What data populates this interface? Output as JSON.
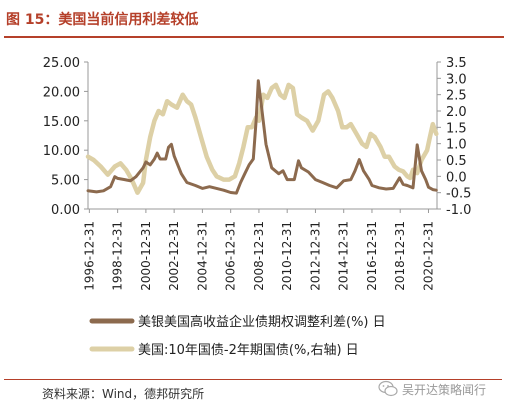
{
  "header": {
    "title": "图 15：美国当前信用利差较低"
  },
  "footer": {
    "source": "资料来源：Wind，德邦研究所",
    "watermark": "吴开达策略闻行"
  },
  "colors": {
    "accent": "#b5402a",
    "series_high_yield": "#8c6a4e",
    "series_term_spread": "#ddd0a6",
    "axis": "#999999"
  },
  "chart_data": {
    "type": "line",
    "title": "",
    "xlabel": "",
    "ylabel": "",
    "x_tick_labels": [
      "1996-12-31",
      "1998-12-31",
      "2000-12-31",
      "2002-12-31",
      "2004-12-31",
      "2006-12-31",
      "2008-12-31",
      "2010-12-31",
      "2012-12-31",
      "2014-12-31",
      "2016-12-31",
      "2018-12-31",
      "2020-12-31"
    ],
    "y_left_ticks": [
      "25.00",
      "20.00",
      "15.00",
      "10.00",
      "5.00",
      "0.00"
    ],
    "y_right_ticks": [
      "3.5",
      "3.0",
      "2.5",
      "2.0",
      "1.5",
      "1.0",
      "0.5",
      "0.0",
      "-0.5",
      "-1.0"
    ],
    "xlim": [
      1996.9,
      2021.6
    ],
    "ylim_left": [
      0,
      25
    ],
    "ylim_right": [
      -1.0,
      3.5
    ],
    "grid": false,
    "legend_position": "bottom",
    "series": [
      {
        "name": "美银美国高收益企业债期权调整利差(%) 日",
        "axis": "left",
        "points": [
          [
            1996.9,
            3.1
          ],
          [
            1997.5,
            2.9
          ],
          [
            1998.0,
            3.1
          ],
          [
            1998.5,
            3.8
          ],
          [
            1998.8,
            5.5
          ],
          [
            1999.0,
            5.2
          ],
          [
            1999.5,
            5.0
          ],
          [
            1999.9,
            4.8
          ],
          [
            2000.3,
            5.5
          ],
          [
            2000.8,
            7.0
          ],
          [
            2001.0,
            8.0
          ],
          [
            2001.3,
            7.5
          ],
          [
            2001.6,
            8.5
          ],
          [
            2001.8,
            9.5
          ],
          [
            2002.0,
            8.5
          ],
          [
            2002.4,
            8.5
          ],
          [
            2002.6,
            10.5
          ],
          [
            2002.8,
            11.0
          ],
          [
            2003.0,
            9.0
          ],
          [
            2003.5,
            6.0
          ],
          [
            2003.9,
            4.5
          ],
          [
            2004.5,
            4.0
          ],
          [
            2005.0,
            3.5
          ],
          [
            2005.5,
            3.8
          ],
          [
            2006.0,
            3.5
          ],
          [
            2006.5,
            3.2
          ],
          [
            2007.0,
            2.8
          ],
          [
            2007.4,
            2.7
          ],
          [
            2007.7,
            4.5
          ],
          [
            2008.0,
            6.0
          ],
          [
            2008.3,
            7.5
          ],
          [
            2008.6,
            8.5
          ],
          [
            2008.8,
            15.0
          ],
          [
            2008.95,
            21.8
          ],
          [
            2009.2,
            17.0
          ],
          [
            2009.5,
            11.0
          ],
          [
            2009.9,
            7.0
          ],
          [
            2010.4,
            6.0
          ],
          [
            2010.7,
            6.5
          ],
          [
            2011.0,
            5.0
          ],
          [
            2011.5,
            5.0
          ],
          [
            2011.8,
            8.2
          ],
          [
            2012.0,
            7.0
          ],
          [
            2012.5,
            6.3
          ],
          [
            2013.0,
            5.0
          ],
          [
            2013.5,
            4.5
          ],
          [
            2014.0,
            4.0
          ],
          [
            2014.5,
            3.6
          ],
          [
            2015.0,
            4.8
          ],
          [
            2015.5,
            5.0
          ],
          [
            2015.8,
            6.5
          ],
          [
            2016.1,
            8.4
          ],
          [
            2016.4,
            6.5
          ],
          [
            2016.8,
            5.0
          ],
          [
            2017.0,
            4.0
          ],
          [
            2017.5,
            3.6
          ],
          [
            2018.0,
            3.4
          ],
          [
            2018.5,
            3.5
          ],
          [
            2018.95,
            5.3
          ],
          [
            2019.2,
            4.2
          ],
          [
            2019.5,
            4.0
          ],
          [
            2019.9,
            3.6
          ],
          [
            2020.2,
            10.9
          ],
          [
            2020.5,
            6.5
          ],
          [
            2020.8,
            5.0
          ],
          [
            2021.0,
            3.7
          ],
          [
            2021.3,
            3.3
          ],
          [
            2021.55,
            3.2
          ]
        ]
      },
      {
        "name": "美国:10年国债-2年期国债(%,右轴) 日",
        "axis": "right",
        "points": [
          [
            1996.9,
            0.6
          ],
          [
            1997.3,
            0.5
          ],
          [
            1997.8,
            0.3
          ],
          [
            1998.3,
            0.05
          ],
          [
            1998.8,
            0.3
          ],
          [
            1999.2,
            0.4
          ],
          [
            1999.6,
            0.2
          ],
          [
            2000.0,
            -0.1
          ],
          [
            2000.4,
            -0.5
          ],
          [
            2000.8,
            -0.2
          ],
          [
            2001.0,
            0.5
          ],
          [
            2001.3,
            1.2
          ],
          [
            2001.6,
            1.7
          ],
          [
            2001.9,
            2.0
          ],
          [
            2002.2,
            1.9
          ],
          [
            2002.5,
            2.3
          ],
          [
            2002.8,
            2.2
          ],
          [
            2003.2,
            2.1
          ],
          [
            2003.6,
            2.5
          ],
          [
            2003.9,
            2.3
          ],
          [
            2004.2,
            2.2
          ],
          [
            2004.5,
            1.8
          ],
          [
            2004.9,
            1.2
          ],
          [
            2005.3,
            0.6
          ],
          [
            2005.7,
            0.2
          ],
          [
            2006.0,
            0.0
          ],
          [
            2006.5,
            -0.1
          ],
          [
            2006.9,
            -0.1
          ],
          [
            2007.3,
            0.0
          ],
          [
            2007.6,
            0.4
          ],
          [
            2007.9,
            0.9
          ],
          [
            2008.2,
            1.5
          ],
          [
            2008.5,
            1.5
          ],
          [
            2008.8,
            1.8
          ],
          [
            2009.0,
            1.7
          ],
          [
            2009.3,
            2.5
          ],
          [
            2009.6,
            2.4
          ],
          [
            2009.9,
            2.7
          ],
          [
            2010.2,
            2.8
          ],
          [
            2010.5,
            2.5
          ],
          [
            2010.8,
            2.4
          ],
          [
            2011.1,
            2.8
          ],
          [
            2011.4,
            2.7
          ],
          [
            2011.7,
            1.9
          ],
          [
            2012.0,
            1.8
          ],
          [
            2012.4,
            1.7
          ],
          [
            2012.8,
            1.4
          ],
          [
            2013.2,
            1.7
          ],
          [
            2013.6,
            2.5
          ],
          [
            2013.9,
            2.6
          ],
          [
            2014.2,
            2.4
          ],
          [
            2014.6,
            2.0
          ],
          [
            2014.9,
            1.5
          ],
          [
            2015.2,
            1.5
          ],
          [
            2015.5,
            1.6
          ],
          [
            2015.9,
            1.3
          ],
          [
            2016.3,
            1.0
          ],
          [
            2016.6,
            0.9
          ],
          [
            2016.9,
            1.3
          ],
          [
            2017.2,
            1.2
          ],
          [
            2017.6,
            0.9
          ],
          [
            2017.9,
            0.6
          ],
          [
            2018.2,
            0.6
          ],
          [
            2018.6,
            0.3
          ],
          [
            2018.9,
            0.2
          ],
          [
            2019.2,
            0.15
          ],
          [
            2019.5,
            0.0
          ],
          [
            2019.7,
            -0.05
          ],
          [
            2019.9,
            0.2
          ],
          [
            2020.2,
            0.1
          ],
          [
            2020.5,
            0.5
          ],
          [
            2020.9,
            0.8
          ],
          [
            2021.1,
            1.2
          ],
          [
            2021.3,
            1.6
          ],
          [
            2021.55,
            1.3
          ]
        ]
      }
    ]
  }
}
